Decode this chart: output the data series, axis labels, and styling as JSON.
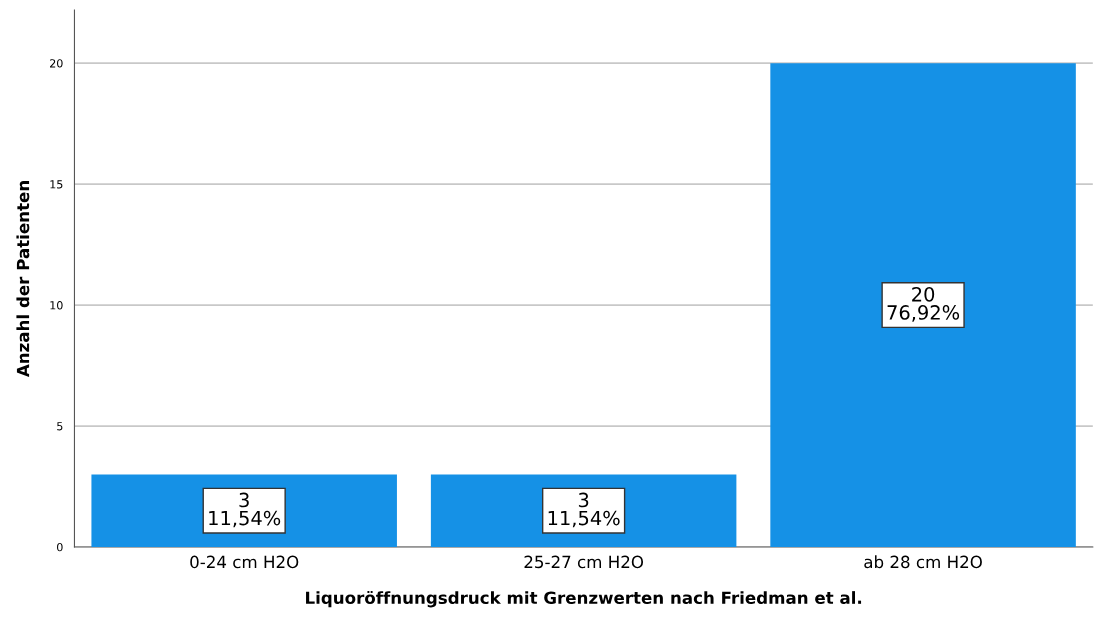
{
  "chart_data": {
    "type": "bar",
    "xlabel": "Liquoröffnungsdruck mit Grenzwerten nach Friedman et al.",
    "ylabel": "Anzahl der Patienten",
    "categories": [
      "0-24 cm H2O",
      "25-27 cm H2O",
      "ab 28 cm H2O"
    ],
    "values": [
      3,
      3,
      20
    ],
    "value_labels": [
      "3\n11,54%",
      "3\n11,54%",
      "20\n76,92%"
    ],
    "color": "#1591e6",
    "ylim": [
      0,
      22.2
    ],
    "yticks": [
      0,
      5,
      10,
      15,
      20
    ],
    "grid": "y"
  }
}
